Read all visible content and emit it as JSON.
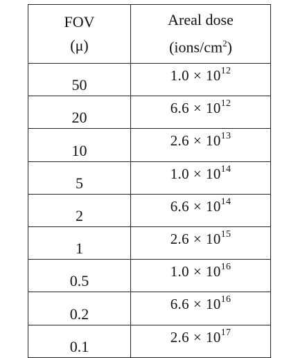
{
  "table": {
    "headers": {
      "fov_line1": "FOV",
      "fov_line2": "(μ)",
      "dose_line1": "Areal dose",
      "dose_unit_base": "(ions/cm",
      "dose_unit_exp": "2",
      "dose_unit_close": ")"
    },
    "rows": [
      {
        "fov": "50",
        "mantissa": "1.0",
        "times": "×",
        "base": "10",
        "exp": "12"
      },
      {
        "fov": "20",
        "mantissa": "6.6",
        "times": "×",
        "base": "10",
        "exp": "12"
      },
      {
        "fov": "10",
        "mantissa": "2.6",
        "times": "×",
        "base": "10",
        "exp": "13"
      },
      {
        "fov": "5",
        "mantissa": "1.0",
        "times": "×",
        "base": "10",
        "exp": "14"
      },
      {
        "fov": "2",
        "mantissa": "6.6",
        "times": "×",
        "base": "10",
        "exp": "14"
      },
      {
        "fov": "1",
        "mantissa": "2.6",
        "times": "×",
        "base": "10",
        "exp": "15"
      },
      {
        "fov": "0.5",
        "mantissa": "1.0",
        "times": "×",
        "base": "10",
        "exp": "16"
      },
      {
        "fov": "0.2",
        "mantissa": "6.6",
        "times": "×",
        "base": "10",
        "exp": "16"
      },
      {
        "fov": "0.1",
        "mantissa": "2.6",
        "times": "×",
        "base": "10",
        "exp": "17"
      }
    ]
  }
}
